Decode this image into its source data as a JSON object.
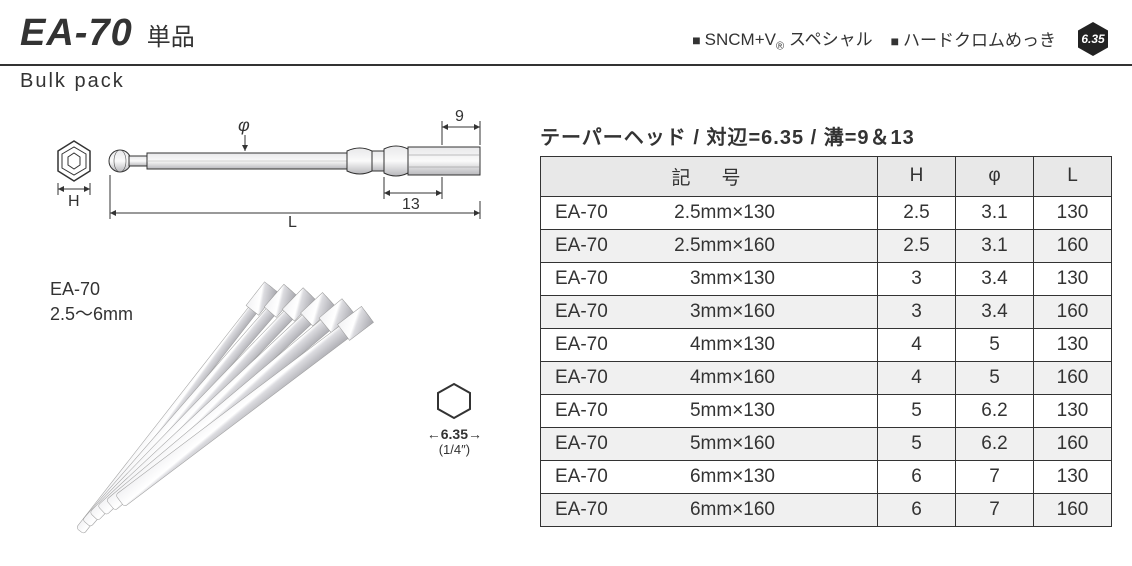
{
  "header": {
    "product_code": "EA-70",
    "product_sub": "単品",
    "spec1_pre": "SNCM+V",
    "spec1_post": " スペシャル",
    "spec2": "ハードクロムめっき",
    "badge_value": "6.35"
  },
  "subtitle": "Bulk pack",
  "diagram": {
    "phi_label": "φ",
    "dim_9": "9",
    "dim_13": "13",
    "H_label": "H",
    "L_label": "L"
  },
  "photo": {
    "label_line1": "EA-70",
    "label_line2": "2.5〜6mm",
    "hex_value": "6.35",
    "hex_sub": "(1/4″)"
  },
  "table": {
    "title": "テーパーヘッド / 対辺=6.35 / 溝=9＆13",
    "headers": {
      "code": "記　号",
      "H": "H",
      "phi": "φ",
      "L": "L"
    },
    "rows": [
      {
        "prefix": "EA-70",
        "size": "2.5mm×130",
        "H": "2.5",
        "phi": "3.1",
        "L": "130",
        "shaded": false
      },
      {
        "prefix": "EA-70",
        "size": "2.5mm×160",
        "H": "2.5",
        "phi": "3.1",
        "L": "160",
        "shaded": true
      },
      {
        "prefix": "EA-70",
        "size": "3mm×130",
        "H": "3",
        "phi": "3.4",
        "L": "130",
        "shaded": false
      },
      {
        "prefix": "EA-70",
        "size": "3mm×160",
        "H": "3",
        "phi": "3.4",
        "L": "160",
        "shaded": true
      },
      {
        "prefix": "EA-70",
        "size": "4mm×130",
        "H": "4",
        "phi": "5",
        "L": "130",
        "shaded": false
      },
      {
        "prefix": "EA-70",
        "size": "4mm×160",
        "H": "4",
        "phi": "5",
        "L": "160",
        "shaded": true
      },
      {
        "prefix": "EA-70",
        "size": "5mm×130",
        "H": "5",
        "phi": "6.2",
        "L": "130",
        "shaded": false
      },
      {
        "prefix": "EA-70",
        "size": "5mm×160",
        "H": "5",
        "phi": "6.2",
        "L": "160",
        "shaded": true
      },
      {
        "prefix": "EA-70",
        "size": "6mm×130",
        "H": "6",
        "phi": "7",
        "L": "130",
        "shaded": false
      },
      {
        "prefix": "EA-70",
        "size": "6mm×160",
        "H": "6",
        "phi": "7",
        "L": "160",
        "shaded": true
      }
    ]
  },
  "colors": {
    "text": "#333333",
    "border": "#333333",
    "header_bg": "#e8e8e8",
    "shaded_row": "#f0f0f0",
    "metal_light": "#e8e8ea",
    "metal_dark": "#b8b8bc"
  }
}
